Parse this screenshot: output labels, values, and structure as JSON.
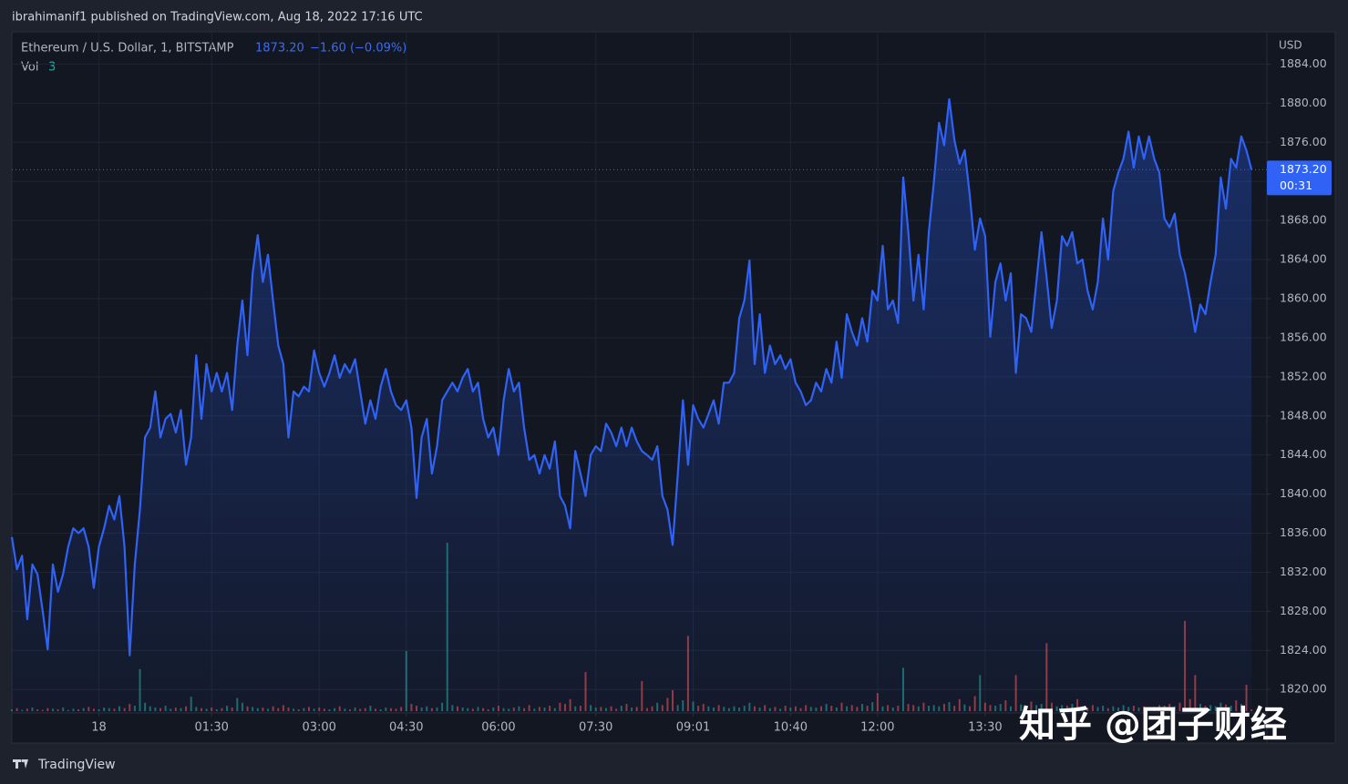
{
  "header": "ibrahimanif1 published on TradingView.com, Aug 18, 2022 17:16 UTC",
  "footer": "TradingView",
  "watermark": "知乎 @团子财经",
  "chart_data": {
    "type": "area",
    "title": "Ethereum / U.S. Dollar, 1, BITSTAMP",
    "price_label": "1873.20",
    "change": "−1.60 (−0.09%)",
    "countdown": "00:31",
    "currency": "USD",
    "grid": true,
    "series": [
      {
        "name": "Ethereum / U.S. Dollar",
        "color": "#2f62f5",
        "values": [
          1835.6,
          1832.3,
          1833.7,
          1827.2,
          1832.8,
          1831.8,
          1828.1,
          1824.1,
          1832.8,
          1830.0,
          1831.8,
          1834.6,
          1836.5,
          1836.0,
          1836.5,
          1834.6,
          1830.4,
          1834.6,
          1836.5,
          1838.8,
          1837.4,
          1839.8,
          1834.6,
          1823.5,
          1832.8,
          1838.4,
          1845.8,
          1846.8,
          1850.5,
          1845.8,
          1847.7,
          1848.2,
          1846.3,
          1848.6,
          1843.0,
          1845.8,
          1854.2,
          1847.7,
          1853.3,
          1850.5,
          1852.4,
          1850.5,
          1852.4,
          1848.6,
          1855.2,
          1859.8,
          1854.2,
          1862.6,
          1866.5,
          1861.7,
          1864.5,
          1859.8,
          1855.2,
          1853.3,
          1845.8,
          1850.5,
          1850.0,
          1851.0,
          1850.5,
          1854.7,
          1852.4,
          1851.0,
          1852.4,
          1854.2,
          1851.9,
          1853.3,
          1852.4,
          1853.8,
          1850.5,
          1847.2,
          1849.6,
          1847.7,
          1851.0,
          1852.8,
          1850.5,
          1849.1,
          1848.6,
          1849.6,
          1846.8,
          1839.6,
          1845.8,
          1847.7,
          1842.1,
          1844.9,
          1849.6,
          1850.5,
          1851.4,
          1850.5,
          1851.9,
          1852.8,
          1850.5,
          1851.4,
          1847.7,
          1845.8,
          1846.8,
          1844.0,
          1849.6,
          1852.8,
          1850.5,
          1851.4,
          1846.8,
          1843.5,
          1844.0,
          1842.1,
          1844.0,
          1842.6,
          1845.4,
          1839.8,
          1838.8,
          1836.5,
          1844.4,
          1842.1,
          1839.8,
          1844.0,
          1844.9,
          1844.4,
          1847.2,
          1846.3,
          1844.9,
          1846.8,
          1844.9,
          1846.8,
          1845.4,
          1844.4,
          1844.0,
          1843.5,
          1844.9,
          1839.8,
          1838.4,
          1834.8,
          1842.1,
          1849.6,
          1843.0,
          1849.1,
          1847.7,
          1846.8,
          1848.2,
          1849.6,
          1847.2,
          1851.4,
          1851.4,
          1852.4,
          1858.0,
          1859.8,
          1863.9,
          1853.3,
          1858.4,
          1852.4,
          1855.2,
          1853.3,
          1854.2,
          1852.8,
          1853.8,
          1851.4,
          1850.5,
          1849.1,
          1849.6,
          1851.4,
          1850.5,
          1852.8,
          1851.4,
          1855.6,
          1851.9,
          1858.4,
          1856.6,
          1855.2,
          1858.0,
          1855.6,
          1860.8,
          1859.8,
          1865.4,
          1858.9,
          1859.8,
          1857.5,
          1872.4,
          1866.8,
          1859.8,
          1864.5,
          1858.9,
          1866.8,
          1872.0,
          1878.0,
          1875.7,
          1880.4,
          1876.2,
          1873.8,
          1875.2,
          1870.6,
          1865.0,
          1868.2,
          1866.4,
          1856.1,
          1861.7,
          1863.6,
          1859.8,
          1862.6,
          1852.4,
          1858.4,
          1858.0,
          1856.6,
          1861.7,
          1866.8,
          1862.2,
          1857.0,
          1859.8,
          1866.4,
          1865.4,
          1866.8,
          1863.6,
          1864.0,
          1860.8,
          1858.9,
          1861.7,
          1868.2,
          1864.0,
          1871.0,
          1872.9,
          1874.3,
          1877.1,
          1873.4,
          1876.6,
          1874.3,
          1876.6,
          1874.3,
          1872.9,
          1868.2,
          1867.3,
          1868.7,
          1864.5,
          1862.6,
          1859.8,
          1856.6,
          1859.4,
          1858.4,
          1861.7,
          1864.5,
          1872.4,
          1869.2,
          1874.3,
          1873.4,
          1876.6,
          1875.2,
          1873.2
        ]
      }
    ],
    "volume": {
      "name": "Vol",
      "up_color": "#26a69a",
      "down_color": "#ef5350",
      "values": [
        3,
        5,
        2,
        4,
        6,
        3,
        2,
        5,
        4,
        3,
        6,
        2,
        4,
        3,
        5,
        7,
        4,
        3,
        6,
        5,
        4,
        8,
        5,
        12,
        9,
        70,
        14,
        8,
        6,
        5,
        9,
        4,
        6,
        5,
        8,
        24,
        7,
        5,
        4,
        6,
        3,
        5,
        9,
        6,
        22,
        14,
        8,
        7,
        5,
        6,
        4,
        8,
        5,
        10,
        6,
        4,
        3,
        5,
        7,
        4,
        6,
        4,
        3,
        5,
        8,
        4,
        3,
        6,
        4,
        5,
        9,
        4,
        3,
        6,
        5,
        4,
        7,
        100,
        12,
        9,
        6,
        8,
        5,
        6,
        14,
        280,
        10,
        8,
        6,
        5,
        4,
        7,
        5,
        3,
        6,
        9,
        5,
        4,
        6,
        8,
        5,
        10,
        4,
        7,
        6,
        9,
        5,
        14,
        12,
        20,
        8,
        9,
        65,
        10,
        6,
        7,
        5,
        8,
        4,
        9,
        12,
        6,
        7,
        50,
        5,
        8,
        14,
        10,
        22,
        35,
        10,
        18,
        125,
        16,
        9,
        12,
        8,
        6,
        10,
        7,
        5,
        8,
        6,
        9,
        14,
        8,
        6,
        10,
        5,
        7,
        4,
        9,
        6,
        8,
        5,
        10,
        7,
        6,
        8,
        12,
        9,
        6,
        14,
        8,
        10,
        7,
        12,
        9,
        15,
        30,
        8,
        10,
        6,
        9,
        72,
        12,
        10,
        8,
        14,
        9,
        10,
        8,
        12,
        15,
        9,
        20,
        11,
        8,
        25,
        60,
        14,
        10,
        9,
        12,
        18,
        8,
        60,
        11,
        9,
        16,
        10,
        12,
        113,
        14,
        8,
        10,
        9,
        12,
        20,
        8,
        6,
        10,
        7,
        9,
        5,
        8,
        6,
        10,
        7,
        9,
        6,
        8,
        5,
        7,
        10,
        9,
        12,
        8,
        14,
        150,
        20,
        60,
        12,
        9,
        10,
        8,
        14,
        11,
        9,
        18,
        12,
        44,
        3
      ]
    },
    "xlim": [
      0,
      245
    ],
    "xticks": [
      {
        "value": 17,
        "label": "18"
      },
      {
        "value": 39,
        "label": "01:30"
      },
      {
        "value": 60,
        "label": "03:00"
      },
      {
        "value": 77,
        "label": "04:30"
      },
      {
        "value": 95,
        "label": "06:00"
      },
      {
        "value": 114,
        "label": "07:30"
      },
      {
        "value": 133,
        "label": "09:01"
      },
      {
        "value": 152,
        "label": "10:40"
      },
      {
        "value": 169,
        "label": "12:00"
      },
      {
        "value": 190,
        "label": "13:30"
      }
    ],
    "ylim": [
      1817.6,
      1887.3
    ],
    "yticks": [
      {
        "value": 1820,
        "label": "1820.00"
      },
      {
        "value": 1824,
        "label": "1824.00"
      },
      {
        "value": 1828,
        "label": "1828.00"
      },
      {
        "value": 1832,
        "label": "1832.00"
      },
      {
        "value": 1836,
        "label": "1836.00"
      },
      {
        "value": 1840,
        "label": "1840.00"
      },
      {
        "value": 1844,
        "label": "1844.00"
      },
      {
        "value": 1848,
        "label": "1848.00"
      },
      {
        "value": 1852,
        "label": "1852.00"
      },
      {
        "value": 1856,
        "label": "1856.00"
      },
      {
        "value": 1860,
        "label": "1860.00"
      },
      {
        "value": 1864,
        "label": "1864.00"
      },
      {
        "value": 1868,
        "label": "1868.00"
      },
      {
        "value": 1872,
        "label": "1872.00"
      },
      {
        "value": 1876,
        "label": "1876.00"
      },
      {
        "value": 1880,
        "label": "1880.00"
      },
      {
        "value": 1884,
        "label": "1884.00"
      }
    ]
  }
}
